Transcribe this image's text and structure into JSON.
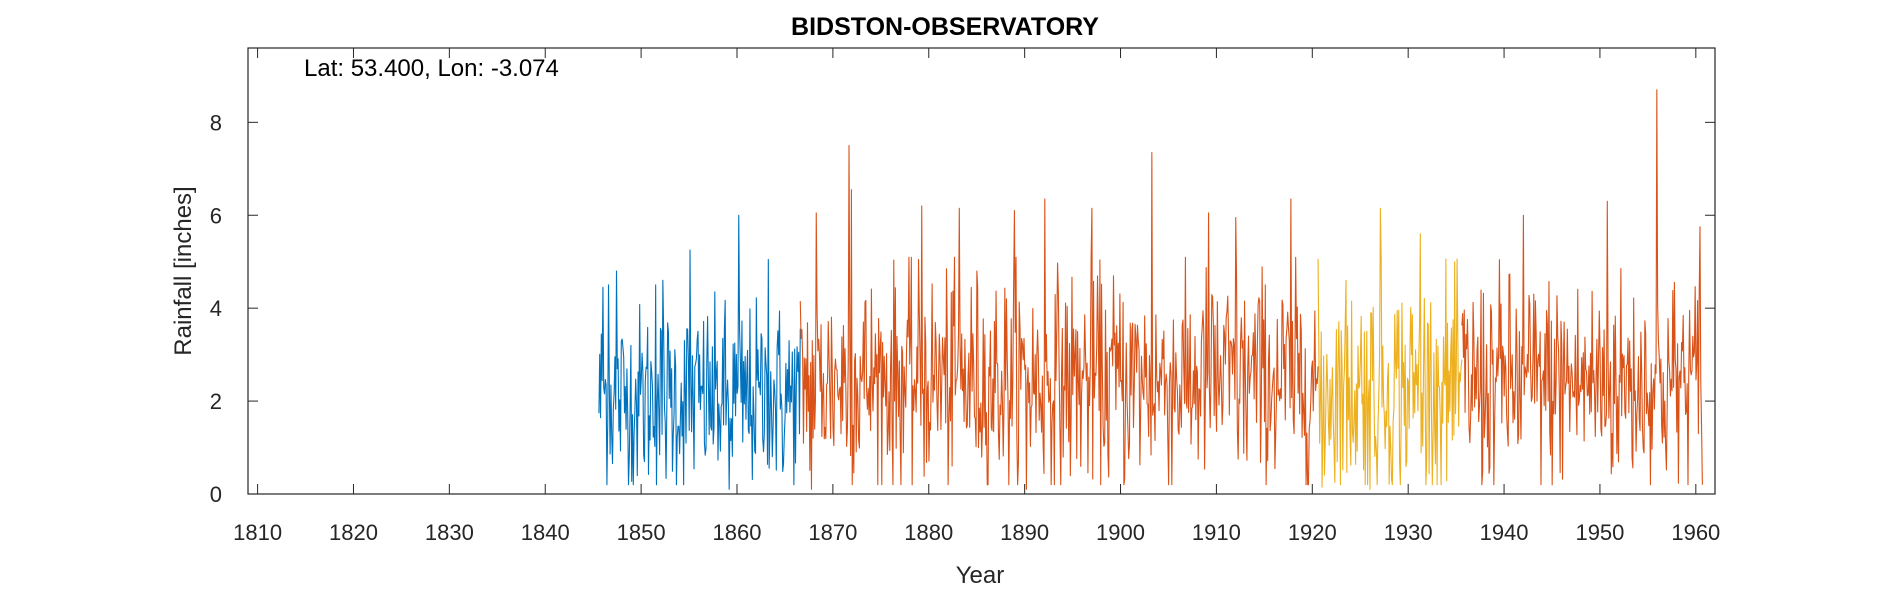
{
  "chart_data": {
    "type": "line",
    "title": "BIDSTON-OBSERVATORY",
    "annotation": "Lat: 53.400, Lon: -3.074",
    "xlabel": "Year",
    "ylabel": "Rainfall [inches]",
    "xlim": [
      1809,
      1962
    ],
    "ylim": [
      0,
      9.6
    ],
    "xticks": [
      1810,
      1820,
      1830,
      1840,
      1850,
      1860,
      1870,
      1880,
      1890,
      1900,
      1910,
      1920,
      1930,
      1940,
      1950,
      1960
    ],
    "yticks": [
      0,
      2,
      4,
      6,
      8
    ],
    "grid": false,
    "box": true,
    "resolution": "monthly",
    "colors": [
      "#0072BD",
      "#D95319",
      "#EDB120"
    ],
    "series": [
      {
        "color": "#0072BD",
        "start": 1845.6,
        "end": 1866.6,
        "mean": 2.05,
        "sd": 1.0,
        "peaks": [
          [
            1846.0,
            4.45
          ],
          [
            1846.6,
            4.5
          ],
          [
            1847.4,
            4.8
          ],
          [
            1851.5,
            4.5
          ],
          [
            1852.3,
            4.6
          ],
          [
            1855.1,
            5.25
          ],
          [
            1859.2,
            0.1
          ],
          [
            1860.2,
            6.0
          ],
          [
            1863.3,
            5.05
          ]
        ]
      },
      {
        "color": "#D95319",
        "start": 1866.6,
        "end": 1920.6,
        "mean": 2.45,
        "sd": 1.15,
        "peaks": [
          [
            1867.8,
            0.1
          ],
          [
            1868.3,
            6.05
          ],
          [
            1871.7,
            7.5
          ],
          [
            1871.9,
            6.55
          ],
          [
            1879.3,
            6.2
          ],
          [
            1883.2,
            6.15
          ],
          [
            1888.9,
            6.1
          ],
          [
            1890.2,
            0.1
          ],
          [
            1892.1,
            6.35
          ],
          [
            1897.0,
            6.15
          ],
          [
            1903.3,
            7.35
          ],
          [
            1909.2,
            6.05
          ],
          [
            1912.0,
            5.95
          ],
          [
            1917.8,
            6.35
          ]
        ]
      },
      {
        "color": "#EDB120",
        "start": 1920.6,
        "end": 1935.6,
        "mean": 2.3,
        "sd": 1.2,
        "peaks": [
          [
            1921.0,
            0.15
          ],
          [
            1926.0,
            0.1
          ],
          [
            1927.1,
            6.15
          ],
          [
            1931.3,
            5.6
          ],
          [
            1933.0,
            0.2
          ]
        ]
      },
      {
        "color": "#D95319",
        "start": 1935.6,
        "end": 1960.7,
        "mean": 2.4,
        "sd": 1.15,
        "peaks": [
          [
            1937.7,
            0.2
          ],
          [
            1942.0,
            6.0
          ],
          [
            1950.8,
            6.3
          ],
          [
            1955.9,
            8.7
          ],
          [
            1960.4,
            5.75
          ]
        ]
      }
    ]
  }
}
